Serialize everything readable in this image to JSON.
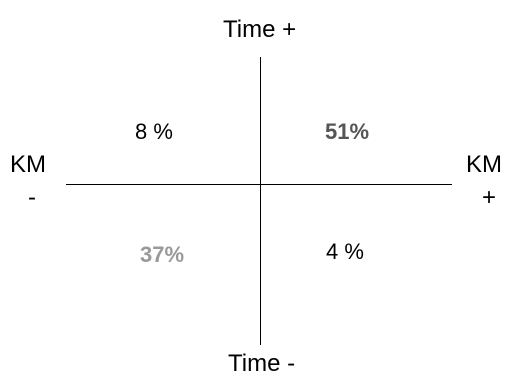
{
  "axes": {
    "top_label": "Time +",
    "bottom_label": "Time -",
    "left_label_line1": "KM",
    "left_label_line2": "-",
    "right_label_line1": "KM",
    "right_label_line2": "+"
  },
  "quadrants": {
    "top_left": "8 %",
    "top_right": "51%",
    "bottom_left": "37%",
    "bottom_right": "4 %"
  },
  "colors": {
    "top_right_value": "#555555",
    "bottom_left_value": "#999999",
    "default_text": "#000000"
  }
}
